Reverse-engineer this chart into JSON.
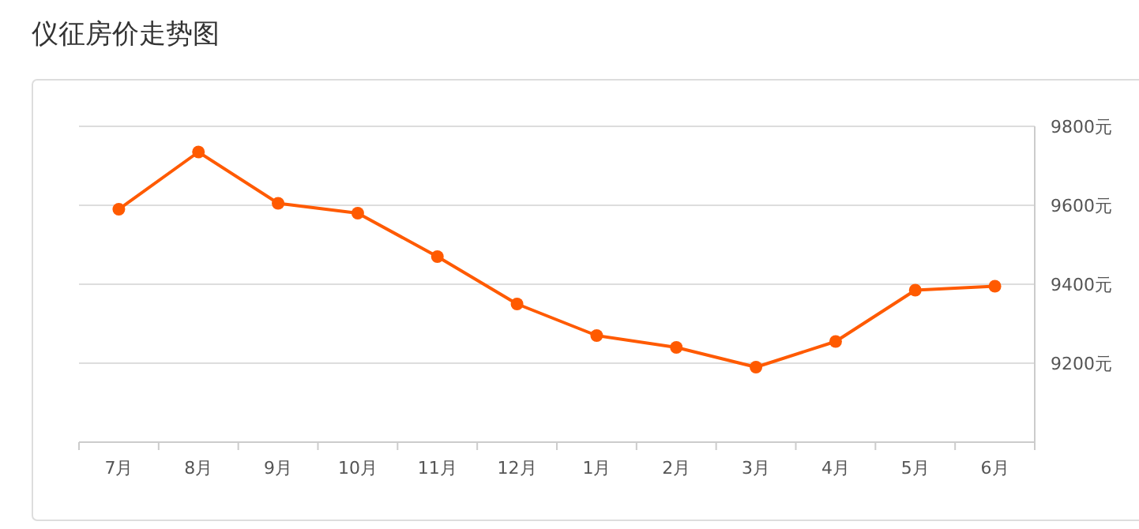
{
  "chart_data": {
    "type": "line",
    "title": "仪征房价走势图",
    "categories": [
      "7月",
      "8月",
      "9月",
      "10月",
      "11月",
      "12月",
      "1月",
      "2月",
      "3月",
      "4月",
      "5月",
      "6月"
    ],
    "series": [
      {
        "color": "#ff5a00",
        "values": [
          9590,
          9735,
          9605,
          9580,
          9470,
          9350,
          9270,
          9240,
          9190,
          9255,
          9385,
          9395
        ]
      }
    ],
    "ylim": [
      9000,
      9800
    ],
    "yticks": [
      {
        "value": 9200,
        "label": "9200元"
      },
      {
        "value": 9400,
        "label": "9400元"
      },
      {
        "value": 9600,
        "label": "9600元"
      },
      {
        "value": 9800,
        "label": "9800元"
      }
    ],
    "grid": "y",
    "marker": "circle",
    "line_style": "solid"
  }
}
